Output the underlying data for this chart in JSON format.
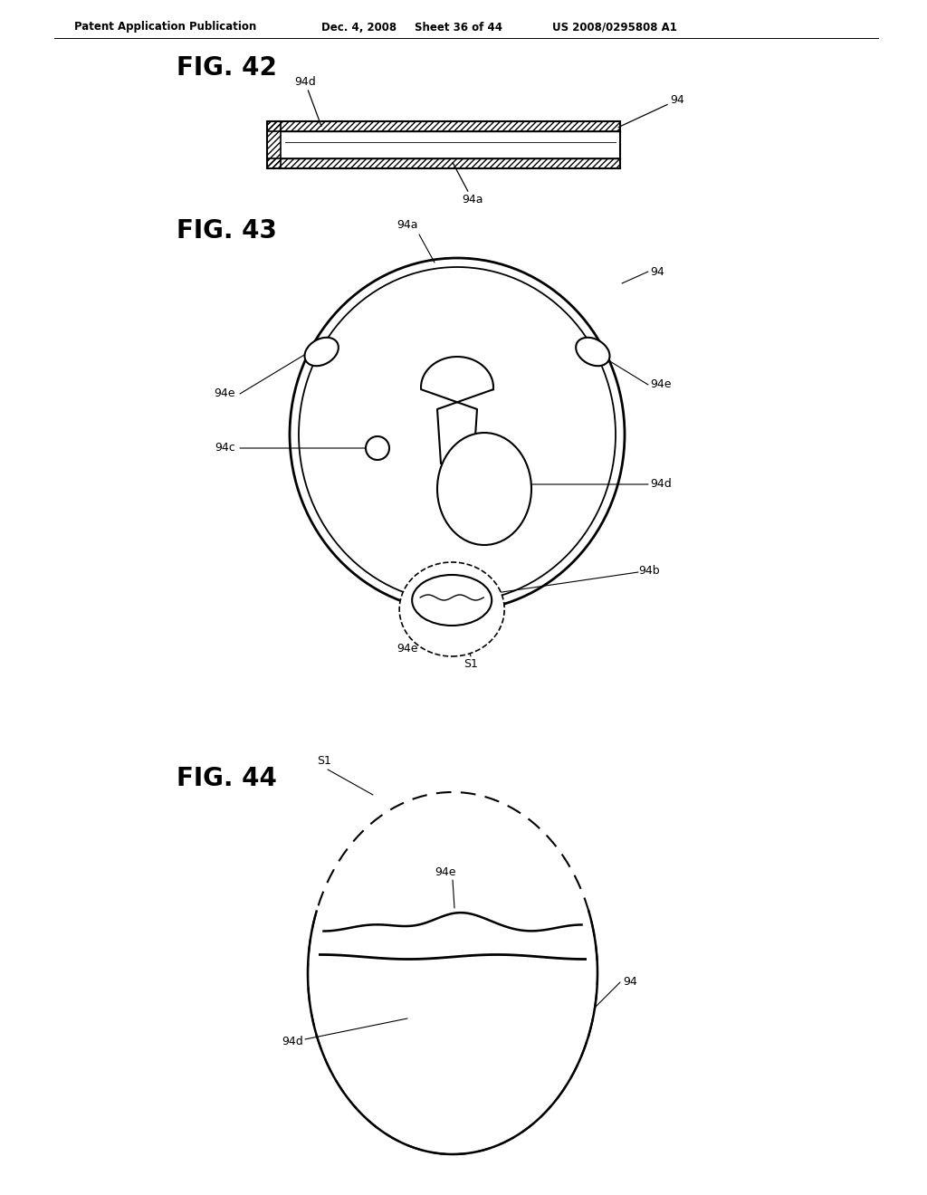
{
  "background_color": "#ffffff",
  "header_text": "Patent Application Publication",
  "header_date": "Dec. 4, 2008",
  "header_sheet": "Sheet 36 of 44",
  "header_patent": "US 2008/0295808 A1",
  "fig42_title": "FIG. 42",
  "fig43_title": "FIG. 43",
  "fig44_title": "FIG. 44",
  "line_color": "#000000"
}
